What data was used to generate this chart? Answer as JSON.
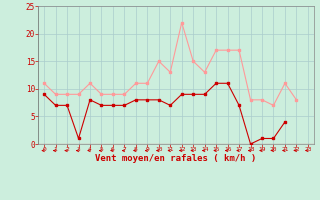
{
  "x": [
    0,
    1,
    2,
    3,
    4,
    5,
    6,
    7,
    8,
    9,
    10,
    11,
    12,
    13,
    14,
    15,
    16,
    17,
    18,
    19,
    20,
    21,
    22,
    23
  ],
  "wind_avg": [
    9,
    7,
    7,
    1,
    8,
    7,
    7,
    7,
    8,
    8,
    8,
    7,
    9,
    9,
    9,
    11,
    11,
    7,
    0,
    1,
    1,
    4,
    null,
    null
  ],
  "wind_gust": [
    11,
    9,
    9,
    9,
    11,
    9,
    9,
    9,
    11,
    11,
    15,
    13,
    22,
    15,
    13,
    17,
    17,
    17,
    8,
    8,
    7,
    11,
    8,
    null
  ],
  "avg_color": "#cc0000",
  "gust_color": "#ff9999",
  "bg_color": "#cceedd",
  "grid_color": "#aacccc",
  "xlabel": "Vent moyen/en rafales ( km/h )",
  "label_color": "#cc0000",
  "tick_color": "#cc0000",
  "ylim": [
    0,
    25
  ],
  "xlim": [
    -0.5,
    23.5
  ],
  "yticks": [
    0,
    5,
    10,
    15,
    20,
    25
  ],
  "figsize": [
    3.2,
    2.0
  ],
  "dpi": 100
}
